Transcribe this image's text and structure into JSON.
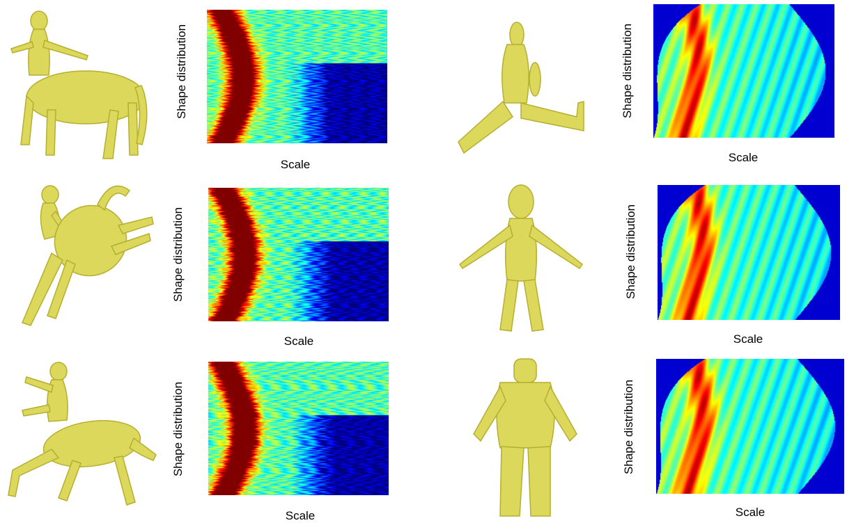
{
  "figure": {
    "panels": [
      {
        "id": "centaur-1",
        "shape_icon": "centaur-standing-icon",
        "ylabel": "Shape distribution",
        "xlabel": "Scale",
        "colormap": "jet"
      },
      {
        "id": "centaur-2",
        "shape_icon": "centaur-rearing-icon",
        "ylabel": "Shape distribution",
        "xlabel": "Scale",
        "colormap": "jet"
      },
      {
        "id": "centaur-3",
        "shape_icon": "centaur-leaping-icon",
        "ylabel": "Shape distribution",
        "xlabel": "Scale",
        "colormap": "jet"
      },
      {
        "id": "human-1",
        "shape_icon": "human-split-icon",
        "ylabel": "Shape distribution",
        "xlabel": "Scale",
        "colormap": "jet"
      },
      {
        "id": "human-2",
        "shape_icon": "human-tpose-icon",
        "ylabel": "Shape distribution",
        "xlabel": "Scale",
        "colormap": "jet"
      },
      {
        "id": "human-3",
        "shape_icon": "human-standing-icon",
        "ylabel": "Shape distribution",
        "xlabel": "Scale",
        "colormap": "jet"
      }
    ],
    "colors": {
      "shape_fill": "#dcd85c",
      "shape_shade": "#b5ae2e",
      "jet_dark_blue": "#00008c",
      "jet_red": "#c8160a"
    }
  }
}
